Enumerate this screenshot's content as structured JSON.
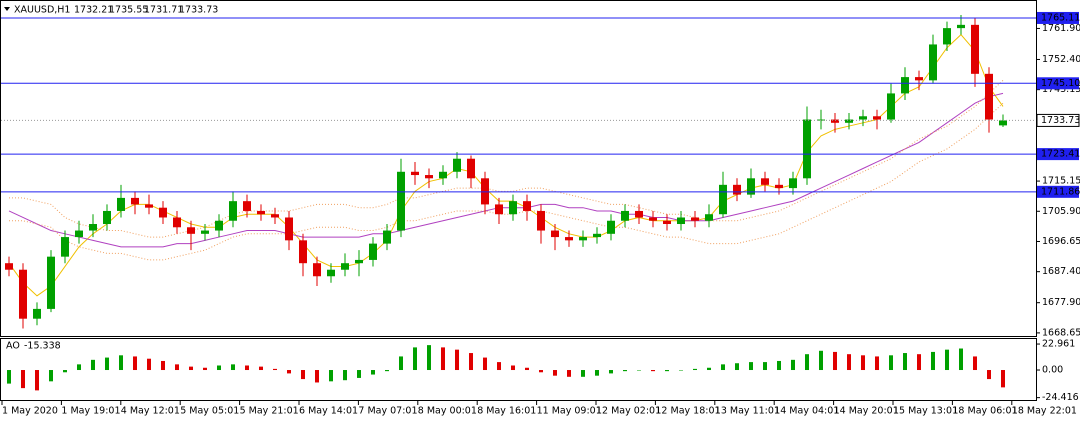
{
  "chart_data": [
    {
      "type": "candlestick",
      "title": "XAUUSD,H1",
      "up_color": "#00a000",
      "down_color": "#e00000",
      "candles": [
        [
          1690,
          1692,
          1686,
          1688
        ],
        [
          1688,
          1690,
          1670,
          1673
        ],
        [
          1673,
          1678,
          1671,
          1676
        ],
        [
          1676,
          1694,
          1675,
          1692
        ],
        [
          1692,
          1700,
          1690,
          1698
        ],
        [
          1698,
          1703,
          1696,
          1700
        ],
        [
          1700,
          1705,
          1698,
          1702
        ],
        [
          1702,
          1708,
          1700,
          1706
        ],
        [
          1706,
          1714,
          1704,
          1710
        ],
        [
          1710,
          1712,
          1705,
          1708
        ],
        [
          1708,
          1711,
          1705,
          1707
        ],
        [
          1707,
          1709,
          1702,
          1704
        ],
        [
          1704,
          1706,
          1699,
          1701
        ],
        [
          1701,
          1703,
          1694,
          1699
        ],
        [
          1699,
          1702,
          1697,
          1700
        ],
        [
          1700,
          1705,
          1698,
          1703
        ],
        [
          1703,
          1712,
          1701,
          1709
        ],
        [
          1709,
          1711,
          1704,
          1706
        ],
        [
          1706,
          1708,
          1703,
          1705
        ],
        [
          1705,
          1707,
          1702,
          1704
        ],
        [
          1704,
          1706,
          1694,
          1697
        ],
        [
          1697,
          1699,
          1686,
          1690
        ],
        [
          1690,
          1692,
          1683,
          1686
        ],
        [
          1686,
          1690,
          1684,
          1688
        ],
        [
          1688,
          1693,
          1686,
          1690
        ],
        [
          1690,
          1694,
          1686,
          1691
        ],
        [
          1691,
          1698,
          1689,
          1696
        ],
        [
          1696,
          1702,
          1694,
          1700
        ],
        [
          1700,
          1722,
          1698,
          1718
        ],
        [
          1718,
          1721,
          1714,
          1717
        ],
        [
          1717,
          1719,
          1713,
          1716
        ],
        [
          1716,
          1720,
          1714,
          1718
        ],
        [
          1718,
          1724,
          1716,
          1722
        ],
        [
          1722,
          1723,
          1713,
          1716
        ],
        [
          1716,
          1718,
          1705,
          1708
        ],
        [
          1708,
          1710,
          1702,
          1705
        ],
        [
          1705,
          1711,
          1703,
          1709
        ],
        [
          1709,
          1711,
          1703,
          1706
        ],
        [
          1706,
          1708,
          1696,
          1700
        ],
        [
          1700,
          1702,
          1694,
          1698
        ],
        [
          1698,
          1700,
          1695,
          1697
        ],
        [
          1697,
          1700,
          1695,
          1698
        ],
        [
          1698,
          1701,
          1696,
          1699
        ],
        [
          1699,
          1705,
          1697,
          1703
        ],
        [
          1703,
          1708,
          1701,
          1706
        ],
        [
          1706,
          1708,
          1702,
          1704
        ],
        [
          1704,
          1706,
          1701,
          1703
        ],
        [
          1703,
          1705,
          1700,
          1702
        ],
        [
          1702,
          1706,
          1700,
          1704
        ],
        [
          1704,
          1706,
          1701,
          1703
        ],
        [
          1703,
          1708,
          1701,
          1705
        ],
        [
          1705,
          1718,
          1704,
          1714
        ],
        [
          1714,
          1716,
          1709,
          1711
        ],
        [
          1711,
          1719,
          1710,
          1716
        ],
        [
          1716,
          1718,
          1712,
          1714
        ],
        [
          1714,
          1716,
          1711,
          1713
        ],
        [
          1713,
          1718,
          1711,
          1716
        ],
        [
          1716,
          1738,
          1714,
          1734
        ],
        [
          1734,
          1737,
          1731,
          1734
        ],
        [
          1734,
          1736,
          1730,
          1733
        ],
        [
          1733,
          1736,
          1731,
          1734
        ],
        [
          1734,
          1737,
          1732,
          1735
        ],
        [
          1735,
          1737,
          1731,
          1734
        ],
        [
          1734,
          1745,
          1733,
          1742
        ],
        [
          1742,
          1750,
          1740,
          1747
        ],
        [
          1747,
          1749,
          1743,
          1746
        ],
        [
          1746,
          1760,
          1745,
          1757
        ],
        [
          1757,
          1764,
          1755,
          1762
        ],
        [
          1762,
          1766,
          1760,
          1763
        ],
        [
          1763,
          1765,
          1744,
          1748
        ],
        [
          1748,
          1750,
          1730,
          1734
        ],
        [
          1732.21,
          1735.55,
          1731.71,
          1733.73
        ]
      ],
      "lines": [
        {
          "color": "#f0c000",
          "dash": false,
          "values": [
            1690,
            1684,
            1680,
            1683,
            1689,
            1695,
            1699,
            1702,
            1706,
            1708,
            1708,
            1706,
            1704,
            1702,
            1701,
            1701,
            1704,
            1705,
            1705,
            1705,
            1701,
            1696,
            1691,
            1689,
            1689,
            1690,
            1693,
            1697,
            1706,
            1712,
            1715,
            1716,
            1719,
            1718,
            1713,
            1709,
            1709,
            1707,
            1704,
            1701,
            1699,
            1698,
            1698,
            1700,
            1703,
            1704,
            1703,
            1703,
            1703,
            1703,
            1704,
            1709,
            1711,
            1713,
            1714,
            1713,
            1714,
            1724,
            1729,
            1731,
            1732,
            1733,
            1734,
            1738,
            1742,
            1744,
            1750,
            1756,
            1760,
            1755,
            1744,
            1738
          ]
        },
        {
          "color": "#b040c0",
          "dash": false,
          "values": [
            1706,
            1704,
            1702,
            1700,
            1699,
            1698,
            1697,
            1696,
            1695,
            1695,
            1695,
            1695,
            1696,
            1696,
            1697,
            1698,
            1699,
            1700,
            1700,
            1700,
            1699,
            1698,
            1698,
            1698,
            1698,
            1698,
            1699,
            1699,
            1700,
            1701,
            1702,
            1703,
            1704,
            1705,
            1706,
            1707,
            1707,
            1707,
            1708,
            1708,
            1707,
            1707,
            1706,
            1706,
            1705,
            1705,
            1704,
            1704,
            1703,
            1703,
            1703,
            1704,
            1705,
            1706,
            1707,
            1708,
            1709,
            1711,
            1713,
            1715,
            1717,
            1719,
            1721,
            1723,
            1725,
            1727,
            1730,
            1733,
            1736,
            1739,
            1741,
            1742
          ]
        },
        {
          "color": "#f0a060",
          "dash": true,
          "values": [
            1710,
            1710,
            1709,
            1708,
            1704,
            1702,
            1701,
            1700,
            1700,
            1699,
            1698,
            1698,
            1699,
            1700,
            1701,
            1703,
            1705,
            1706,
            1706,
            1706,
            1706,
            1707,
            1708,
            1708,
            1708,
            1707,
            1707,
            1708,
            1710,
            1710,
            1711,
            1712,
            1713,
            1713,
            1713,
            1712,
            1712,
            1713,
            1713,
            1712,
            1711,
            1710,
            1709,
            1708,
            1708,
            1707,
            1706,
            1705,
            1705,
            1704,
            1703,
            1703,
            1703,
            1704,
            1705,
            1706,
            1708,
            1710,
            1712,
            1714,
            1716,
            1718,
            1720,
            1722,
            1725,
            1728,
            1730,
            1732,
            1735,
            1738,
            1742,
            1746
          ]
        },
        {
          "color": "#f0a060",
          "dash": true,
          "values": [
            1703,
            1703,
            1702,
            1701,
            1697,
            1695,
            1694,
            1693,
            1693,
            1692,
            1691,
            1691,
            1692,
            1693,
            1694,
            1696,
            1698,
            1699,
            1699,
            1699,
            1699,
            1700,
            1701,
            1701,
            1701,
            1700,
            1700,
            1701,
            1703,
            1703,
            1704,
            1705,
            1706,
            1706,
            1706,
            1705,
            1705,
            1706,
            1706,
            1705,
            1704,
            1703,
            1702,
            1701,
            1701,
            1700,
            1699,
            1698,
            1698,
            1697,
            1696,
            1696,
            1696,
            1697,
            1698,
            1699,
            1701,
            1703,
            1705,
            1707,
            1709,
            1711,
            1713,
            1715,
            1718,
            1721,
            1723,
            1725,
            1728,
            1731,
            1735,
            1739
          ]
        }
      ],
      "hline_color": "#2020f0",
      "hlines": [
        1765.11,
        {
          "value": 1745.1,
          "label": "1745.10"
        },
        1723.41,
        1711.86
      ],
      "ylim": [
        1667.7,
        1770.0
      ],
      "yticks": [
        1668.65,
        {
          "value": 1677.9,
          "label": "1677.90"
        },
        {
          "value": 1687.4,
          "label": "1687.40"
        },
        1696.65,
        {
          "value": 1705.9,
          "label": "1705.90"
        },
        1715.15,
        1743.15,
        {
          "value": 1752.4,
          "label": "1752.40"
        },
        {
          "value": 1761.9,
          "label": "1761.90"
        }
      ],
      "xlabels": [
        "1 May 2020",
        "1 May 19:01",
        "4 May 12:01",
        "5 May 05:01",
        "5 May 21:01",
        "6 May 14:01",
        "7 May 07:01",
        "8 May 00:01",
        "8 May 16:01",
        "11 May 09:01",
        "12 May 02:01",
        "12 May 18:01",
        "13 May 11:01",
        "14 May 04:01",
        "14 May 20:01",
        "15 May 13:01",
        "18 May 06:01",
        "18 May 22:01"
      ]
    },
    {
      "type": "bar",
      "title": "AO",
      "up_color": "#00a000",
      "down_color": "#e00000",
      "values": [
        -12,
        -16,
        -18,
        -10,
        -2,
        5,
        9,
        11,
        13,
        12,
        10,
        8,
        5,
        3,
        2,
        4,
        5,
        4,
        3,
        1,
        -3,
        -8,
        -11,
        -10,
        -9,
        -7,
        -4,
        -1,
        12,
        20,
        22,
        20,
        18,
        15,
        11,
        7,
        4,
        2,
        -2,
        -5,
        -6,
        -6,
        -5,
        -3,
        -1,
        0,
        -1,
        -1,
        0,
        1,
        2,
        5,
        6,
        7,
        7,
        8,
        9,
        14,
        17,
        16,
        14,
        13,
        12,
        13,
        15,
        14,
        16,
        18,
        19,
        12,
        -8,
        -15.338
      ],
      "ylim": [
        -26.5,
        28.3
      ],
      "yticks": [
        22.961,
        {
          "value": 0,
          "label": "0.00"
        },
        -24.416
      ]
    }
  ]
}
